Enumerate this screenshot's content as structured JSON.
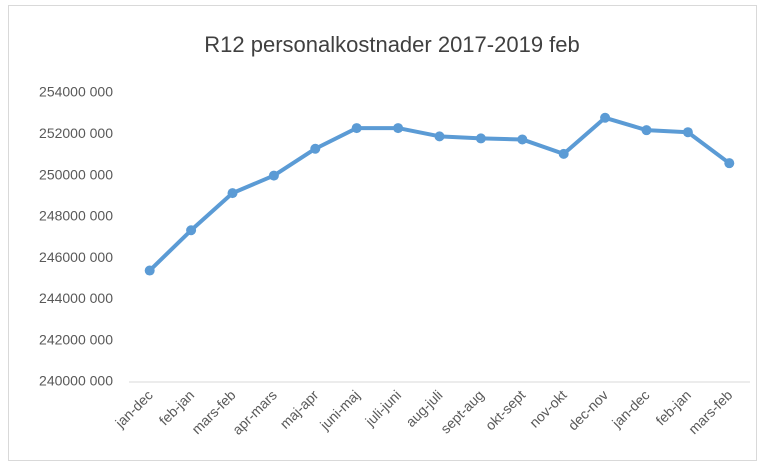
{
  "chart_data": {
    "type": "line",
    "title": "R12 personalkostnader  2017-2019 feb",
    "categories": [
      "jan-dec",
      "feb-jan",
      "mars-feb",
      "apr-mars",
      "maj-apr",
      "juni-maj",
      "juli-juni",
      "aug-juli",
      "sept-aug",
      "okt-sept",
      "nov-okt",
      "dec-nov",
      "jan-dec",
      "feb-jan",
      "mars-feb"
    ],
    "series": [
      {
        "name": "R12",
        "color": "#5b9bd5",
        "values": [
          245400000,
          247350000,
          249150000,
          250000000,
          251300000,
          252300000,
          252300000,
          251900000,
          251800000,
          251750000,
          251050000,
          252800000,
          252200000,
          252100000,
          250600000
        ]
      }
    ],
    "ylim": [
      240000000,
      254000000
    ],
    "yticks": [
      {
        "value": 240000000,
        "label": "240000 000"
      },
      {
        "value": 242000000,
        "label": "242000 000"
      },
      {
        "value": 244000000,
        "label": "244000 000"
      },
      {
        "value": 246000000,
        "label": "246000 000"
      },
      {
        "value": 248000000,
        "label": "248000 000"
      },
      {
        "value": 250000000,
        "label": "250000 000"
      },
      {
        "value": 252000000,
        "label": "252000 000"
      },
      {
        "value": 254000000,
        "label": "254000 000"
      }
    ]
  }
}
